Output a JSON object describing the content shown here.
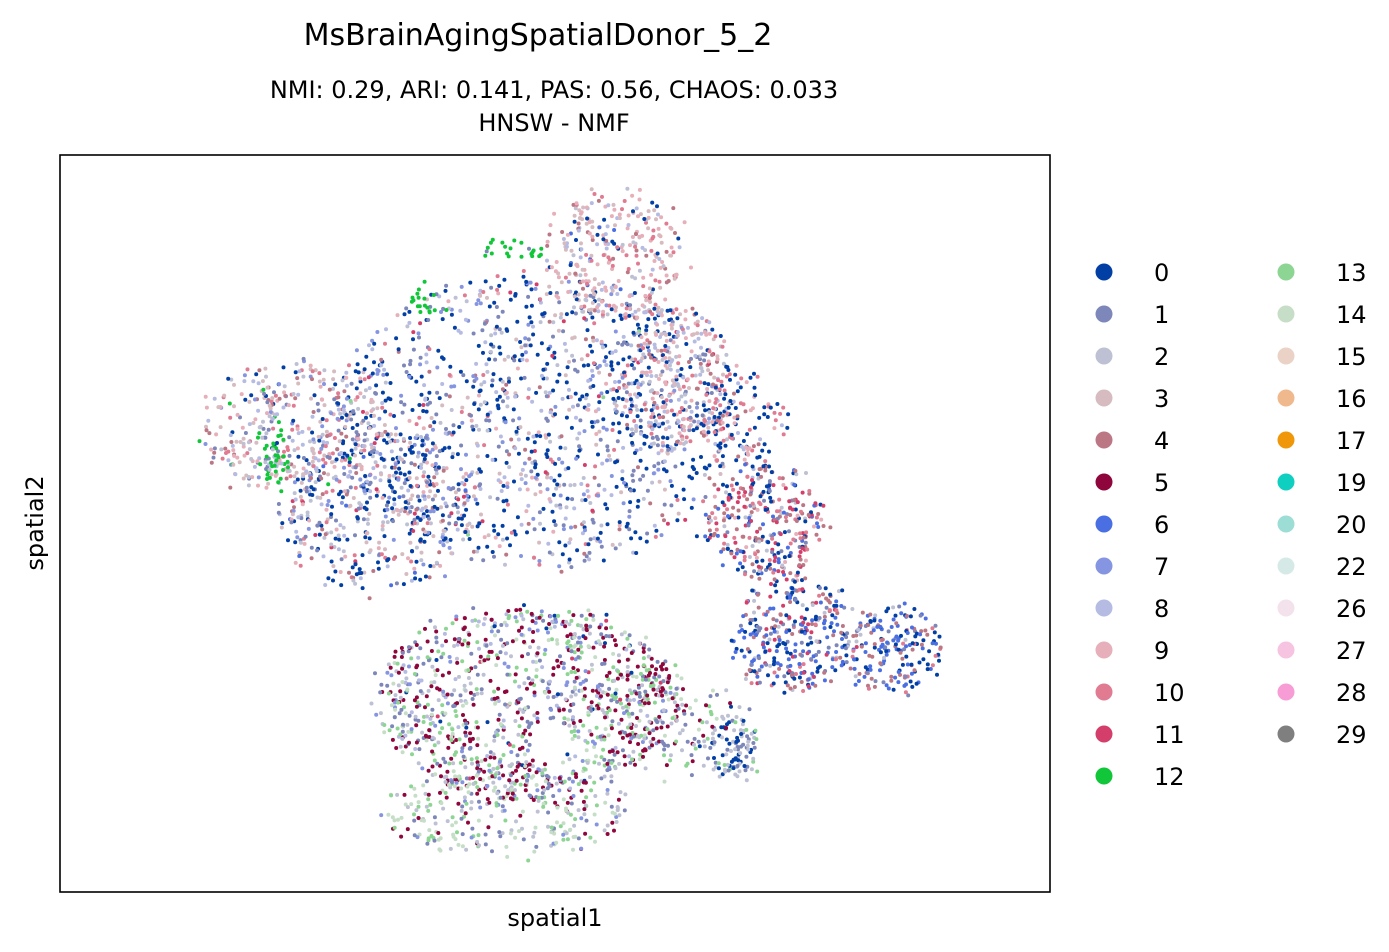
{
  "chart_data": {
    "type": "scatter",
    "title": "MsBrainAgingSpatialDonor_5_2",
    "subtitle_line1": "NMI: 0.29,  ARI: 0.141,  PAS: 0.56,  CHAOS: 0.033",
    "subtitle_line2": "HNSW - NMF",
    "xlabel": "spatial1",
    "ylabel": "spatial2",
    "x_ticks": false,
    "y_ticks": false,
    "grid": false,
    "legend_placement": "right",
    "legend_columns": 2,
    "categories": [
      {
        "label": "0",
        "color": "#023fa5"
      },
      {
        "label": "1",
        "color": "#7d87b9"
      },
      {
        "label": "2",
        "color": "#bec1d4"
      },
      {
        "label": "3",
        "color": "#d6bcc0"
      },
      {
        "label": "4",
        "color": "#bb7784"
      },
      {
        "label": "5",
        "color": "#8e063b"
      },
      {
        "label": "6",
        "color": "#4a6fe3"
      },
      {
        "label": "7",
        "color": "#8595e1"
      },
      {
        "label": "8",
        "color": "#b5bbe3"
      },
      {
        "label": "9",
        "color": "#e6afb9"
      },
      {
        "label": "10",
        "color": "#e07b91"
      },
      {
        "label": "11",
        "color": "#d33f6a"
      },
      {
        "label": "12",
        "color": "#11c638"
      },
      {
        "label": "13",
        "color": "#8dd593"
      },
      {
        "label": "14",
        "color": "#c6dec7"
      },
      {
        "label": "15",
        "color": "#ead3c6"
      },
      {
        "label": "16",
        "color": "#f0b98d"
      },
      {
        "label": "17",
        "color": "#ef9708"
      },
      {
        "label": "19",
        "color": "#0fcfc0"
      },
      {
        "label": "20",
        "color": "#9cded6"
      },
      {
        "label": "22",
        "color": "#d5eae7"
      },
      {
        "label": "26",
        "color": "#f3e1eb"
      },
      {
        "label": "27",
        "color": "#f6c4e1"
      },
      {
        "label": "28",
        "color": "#f79cd4"
      },
      {
        "label": "29",
        "color": "#7f7f7f"
      }
    ],
    "regions": [
      {
        "cx": 0.48,
        "cy": 0.36,
        "rx": 0.2,
        "ry": 0.2,
        "n": 1300,
        "weights": {
          "0": 7,
          "1": 3,
          "2": 2,
          "3": 1.5,
          "4": 1,
          "7": 2,
          "8": 2,
          "9": 1,
          "10": 1,
          "11": 0.4,
          "13": 0.1
        }
      },
      {
        "cx": 0.32,
        "cy": 0.48,
        "rx": 0.1,
        "ry": 0.11,
        "n": 450,
        "weights": {
          "0": 5,
          "1": 3,
          "2": 2,
          "3": 2,
          "4": 1.5,
          "7": 1.5,
          "8": 1.5,
          "9": 1,
          "10": 1,
          "11": 0.5,
          "6": 0.4
        }
      },
      {
        "cx": 0.23,
        "cy": 0.37,
        "rx": 0.09,
        "ry": 0.09,
        "n": 350,
        "weights": {
          "1": 2,
          "2": 2,
          "3": 3,
          "4": 2,
          "7": 1.5,
          "8": 2,
          "9": 2,
          "10": 2,
          "0": 1,
          "12": 0.3
        }
      },
      {
        "cx": 0.22,
        "cy": 0.405,
        "rx": 0.015,
        "ry": 0.06,
        "n": 50,
        "weights": {
          "12": 6,
          "2": 1,
          "8": 1
        }
      },
      {
        "cx": 0.37,
        "cy": 0.2,
        "rx": 0.015,
        "ry": 0.02,
        "n": 18,
        "weights": {
          "12": 5
        }
      },
      {
        "cx": 0.46,
        "cy": 0.13,
        "rx": 0.03,
        "ry": 0.015,
        "n": 22,
        "weights": {
          "12": 5,
          "1": 1
        }
      },
      {
        "cx": 0.56,
        "cy": 0.14,
        "rx": 0.07,
        "ry": 0.09,
        "n": 300,
        "weights": {
          "3": 3,
          "9": 4,
          "10": 2,
          "4": 1.5,
          "8": 2,
          "2": 1,
          "0": 1,
          "6": 0.3
        }
      },
      {
        "cx": 0.62,
        "cy": 0.3,
        "rx": 0.06,
        "ry": 0.1,
        "n": 280,
        "weights": {
          "9": 3,
          "3": 2,
          "10": 2,
          "8": 2,
          "2": 1.5,
          "0": 2,
          "4": 1,
          "1": 1
        }
      },
      {
        "cx": 0.69,
        "cy": 0.36,
        "rx": 0.04,
        "ry": 0.07,
        "n": 120,
        "weights": {
          "0": 4,
          "9": 2,
          "10": 2,
          "4": 1.5,
          "8": 1
        }
      },
      {
        "cx": 0.71,
        "cy": 0.5,
        "rx": 0.06,
        "ry": 0.08,
        "n": 330,
        "weights": {
          "11": 3,
          "4": 3,
          "10": 2,
          "0": 3,
          "6": 2,
          "1": 1.5,
          "9": 1,
          "2": 1
        }
      },
      {
        "cx": 0.74,
        "cy": 0.65,
        "rx": 0.06,
        "ry": 0.08,
        "n": 320,
        "weights": {
          "0": 4,
          "6": 4,
          "4": 2,
          "1": 2,
          "10": 1,
          "11": 1,
          "2": 1
        }
      },
      {
        "cx": 0.84,
        "cy": 0.67,
        "rx": 0.05,
        "ry": 0.06,
        "n": 200,
        "weights": {
          "6": 5,
          "0": 3,
          "4": 2,
          "1": 1.5,
          "10": 1,
          "2": 0.6
        }
      },
      {
        "cx": 0.68,
        "cy": 0.8,
        "rx": 0.025,
        "ry": 0.045,
        "n": 110,
        "weights": {
          "2": 4,
          "0": 3,
          "1": 2,
          "13": 0.5
        }
      },
      {
        "cx": 0.47,
        "cy": 0.74,
        "rx": 0.15,
        "ry": 0.13,
        "n": 1050,
        "weights": {
          "5": 5,
          "1": 3,
          "2": 2,
          "13": 3,
          "14": 2,
          "7": 1.5,
          "8": 1,
          "0": 0.4,
          "11": 0.2
        }
      },
      {
        "cx": 0.45,
        "cy": 0.89,
        "rx": 0.12,
        "ry": 0.06,
        "n": 300,
        "weights": {
          "2": 3,
          "13": 3,
          "14": 3,
          "5": 2,
          "1": 2,
          "7": 1
        }
      },
      {
        "cx": 0.62,
        "cy": 0.76,
        "rx": 0.05,
        "ry": 0.08,
        "n": 140,
        "weights": {
          "5": 3,
          "13": 2,
          "2": 2,
          "1": 2,
          "14": 1
        }
      }
    ],
    "holes": [
      {
        "cx": 0.495,
        "cy": 0.795,
        "rx": 0.02,
        "ry": 0.03
      },
      {
        "cx": 0.645,
        "cy": 0.63,
        "rx": 0.025,
        "ry": 0.11
      }
    ],
    "seed": 52
  }
}
